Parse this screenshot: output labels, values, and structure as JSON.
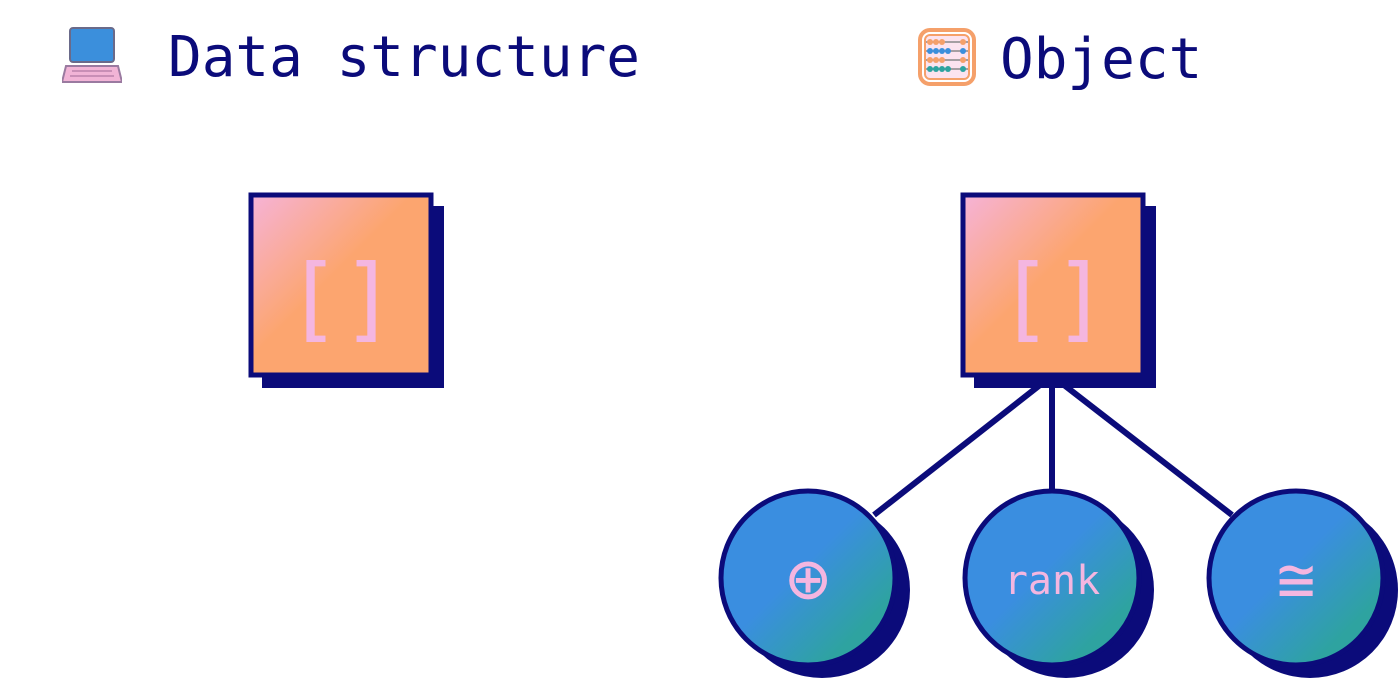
{
  "left_panel": {
    "title": "Data structure",
    "icon": "laptop-icon",
    "box_label": "[]"
  },
  "right_panel": {
    "title": "Object",
    "icon": "abacus-icon",
    "box_label": "[]",
    "children": [
      {
        "label": "⊕"
      },
      {
        "label": "rank"
      },
      {
        "label": "≅"
      }
    ]
  },
  "colors": {
    "text": "#0b0b7a",
    "outline": "#0b0b7a",
    "box_fill_start": "#f6b3d8",
    "box_fill_end": "#fca56f",
    "node_fill_start": "#3a8ee0",
    "node_fill_end": "#2ea3a0",
    "label": "#f4b6e0"
  }
}
